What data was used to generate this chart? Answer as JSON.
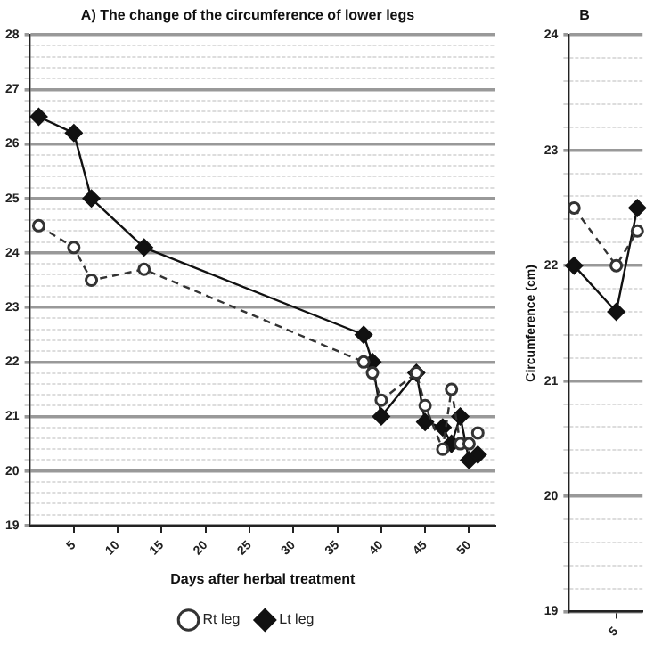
{
  "chart_data": [
    {
      "type": "line",
      "title": "A) The change of the circumference of lower legs",
      "xlabel": "Days after herbal treatment",
      "xlim": [
        0,
        53
      ],
      "xticks": [
        5,
        10,
        15,
        20,
        25,
        30,
        35,
        40,
        45,
        50
      ],
      "ylim": [
        19,
        28
      ],
      "yticks": [
        19,
        {
          "value": 19.2,
          "label": null
        },
        {
          "value": 19.4,
          "label": null
        },
        {
          "value": 19.6,
          "label": null
        },
        {
          "value": 19.8,
          "label": null
        },
        20,
        {
          "value": 20.2,
          "label": null
        },
        {
          "value": 20.4,
          "label": null
        },
        {
          "value": 20.6,
          "label": null
        },
        {
          "value": 20.8,
          "label": null
        },
        21,
        {
          "value": 21.2,
          "label": null
        },
        {
          "value": 21.4,
          "label": null
        },
        {
          "value": 21.6,
          "label": null
        },
        {
          "value": 21.8,
          "label": null
        },
        22,
        {
          "value": 22.2,
          "label": null
        },
        {
          "value": 22.4,
          "label": null
        },
        {
          "value": 22.6,
          "label": null
        },
        {
          "value": 22.8,
          "label": null
        },
        23,
        {
          "value": 23.2,
          "label": null
        },
        {
          "value": 23.4,
          "label": null
        },
        {
          "value": 23.6,
          "label": null
        },
        {
          "value": 23.8,
          "label": null
        },
        24,
        {
          "value": 24.2,
          "label": null
        },
        {
          "value": 24.4,
          "label": null
        },
        {
          "value": 24.6,
          "label": null
        },
        {
          "value": 24.8,
          "label": null
        },
        25,
        {
          "value": 25.2,
          "label": null
        },
        {
          "value": 25.4,
          "label": null
        },
        {
          "value": 25.6,
          "label": null
        },
        {
          "value": 25.8,
          "label": null
        },
        26,
        {
          "value": 26.2,
          "label": null
        },
        {
          "value": 26.4,
          "label": null
        },
        {
          "value": 26.6,
          "label": null
        },
        {
          "value": 26.8,
          "label": null
        },
        27,
        {
          "value": 27.2,
          "label": null
        },
        {
          "value": 27.4,
          "label": null
        },
        {
          "value": 27.6,
          "label": null
        },
        {
          "value": 27.8,
          "label": null
        },
        28
      ],
      "grid": "y",
      "legend": "bottom",
      "series": [
        {
          "name": "Rt leg",
          "color": "#333333",
          "marker": "circle",
          "line_style": "dashed",
          "x": [
            1,
            5,
            7,
            13,
            38,
            39,
            40,
            44,
            45,
            47,
            48,
            49,
            50,
            51
          ],
          "values": [
            24.5,
            24.1,
            23.5,
            23.7,
            22.0,
            21.8,
            21.3,
            21.8,
            21.2,
            20.4,
            21.5,
            20.5,
            20.5,
            20.7
          ]
        },
        {
          "name": "Lt leg",
          "color": "#111111",
          "marker": "diamond",
          "line_style": "solid",
          "x": [
            1,
            5,
            7,
            13,
            38,
            39,
            40,
            44,
            45,
            47,
            48,
            49,
            50,
            51
          ],
          "values": [
            26.5,
            26.2,
            25.0,
            24.1,
            22.5,
            22.0,
            21.0,
            21.8,
            20.9,
            20.8,
            20.5,
            21.0,
            20.2,
            20.3
          ]
        }
      ]
    },
    {
      "type": "line",
      "title": "B",
      "ylabel": "Circumference (cm)",
      "categories": [
        null,
        null,
        null,
        null,
        "5",
        null,
        null
      ],
      "ylim": [
        19,
        24
      ],
      "yticks": [
        19,
        {
          "value": 19.2,
          "label": null
        },
        {
          "value": 19.4,
          "label": null
        },
        {
          "value": 19.6,
          "label": null
        },
        {
          "value": 19.8,
          "label": null
        },
        20,
        {
          "value": 20.2,
          "label": null
        },
        {
          "value": 20.4,
          "label": null
        },
        {
          "value": 20.6,
          "label": null
        },
        {
          "value": 20.8,
          "label": null
        },
        21,
        {
          "value": 21.2,
          "label": null
        },
        {
          "value": 21.4,
          "label": null
        },
        {
          "value": 21.6,
          "label": null
        },
        {
          "value": 21.8,
          "label": null
        },
        22,
        {
          "value": 22.2,
          "label": null
        },
        {
          "value": 22.4,
          "label": null
        },
        {
          "value": 22.6,
          "label": null
        },
        {
          "value": 22.8,
          "label": null
        },
        23,
        {
          "value": 23.2,
          "label": null
        },
        {
          "value": 23.4,
          "label": null
        },
        {
          "value": 23.6,
          "label": null
        },
        {
          "value": 23.8,
          "label": null
        },
        24
      ],
      "grid": "y",
      "series": [
        {
          "color": "#333333",
          "marker": "circle",
          "line_style": "dashed",
          "values": [
            22.5,
            null,
            null,
            null,
            22.0,
            null,
            22.3
          ]
        },
        {
          "color": "#111111",
          "marker": "diamond",
          "line_style": "solid",
          "values": [
            22.0,
            null,
            null,
            null,
            21.6,
            null,
            22.5
          ]
        }
      ]
    }
  ]
}
